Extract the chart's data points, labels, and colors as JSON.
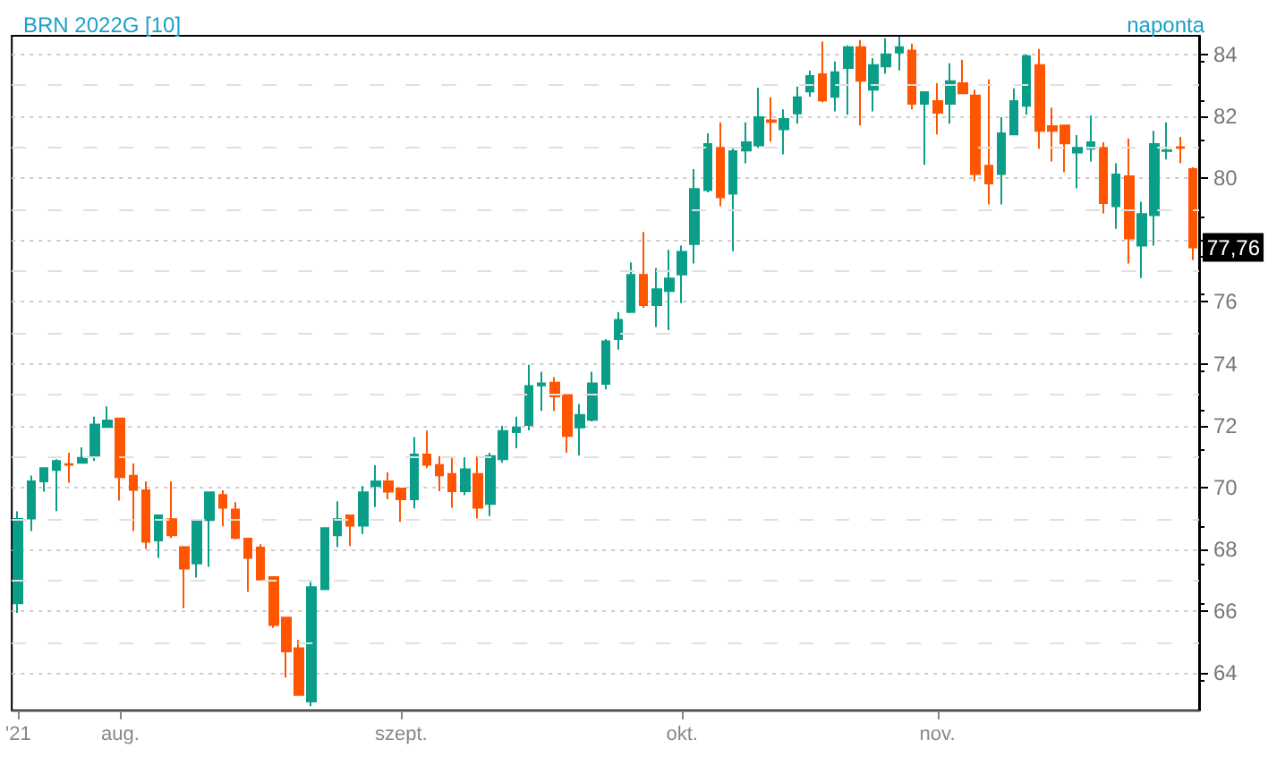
{
  "chart_data": {
    "type": "candlestick",
    "title": "BRN 2022G [10]",
    "subtitle": "naponta",
    "categories": [
      "'21",
      null,
      null,
      null,
      null,
      null,
      null,
      null,
      "aug.",
      null,
      null,
      null,
      null,
      null,
      null,
      null,
      null,
      null,
      null,
      null,
      null,
      null,
      null,
      null,
      null,
      null,
      null,
      null,
      null,
      null,
      "szept.",
      null,
      null,
      null,
      null,
      null,
      null,
      null,
      null,
      null,
      null,
      null,
      null,
      null,
      null,
      null,
      null,
      null,
      null,
      null,
      null,
      null,
      "okt.",
      null,
      null,
      null,
      null,
      null,
      null,
      null,
      null,
      null,
      null,
      null,
      null,
      null,
      null,
      null,
      null,
      null,
      null,
      null,
      "nov.",
      null,
      null,
      null,
      null,
      null,
      null,
      null,
      null,
      null,
      null,
      null,
      null,
      null,
      null,
      null,
      null,
      null,
      null,
      null,
      null
    ],
    "ohlc": [
      [
        66.26,
        69.23,
        65.95,
        68.99
      ],
      [
        69.0,
        70.39,
        68.6,
        70.2
      ],
      [
        70.2,
        70.63,
        69.87,
        70.63
      ],
      [
        70.57,
        70.92,
        69.24,
        70.86
      ],
      [
        70.76,
        71.13,
        70.16,
        70.74
      ],
      [
        70.8,
        71.3,
        70.8,
        70.96
      ],
      [
        71.03,
        72.29,
        70.86,
        72.04
      ],
      [
        71.96,
        72.62,
        71.94,
        72.17
      ],
      [
        72.23,
        72.23,
        69.58,
        70.34
      ],
      [
        70.38,
        70.78,
        68.6,
        69.93
      ],
      [
        69.91,
        70.2,
        68.02,
        68.25
      ],
      [
        68.29,
        69.1,
        67.73,
        69.1
      ],
      [
        68.98,
        70.2,
        68.37,
        68.46
      ],
      [
        68.08,
        68.11,
        66.1,
        67.38
      ],
      [
        67.55,
        68.93,
        67.09,
        68.93
      ],
      [
        68.95,
        69.85,
        67.44,
        69.85
      ],
      [
        69.76,
        69.91,
        68.75,
        69.35
      ],
      [
        69.29,
        69.53,
        68.33,
        68.37
      ],
      [
        68.35,
        68.35,
        66.63,
        67.73
      ],
      [
        68.06,
        68.17,
        67.03,
        67.03
      ],
      [
        67.11,
        67.11,
        65.47,
        65.56
      ],
      [
        65.8,
        65.8,
        63.86,
        64.71
      ],
      [
        64.81,
        65.08,
        63.3,
        63.3
      ],
      [
        63.09,
        66.95,
        62.94,
        66.78
      ],
      [
        66.72,
        68.69,
        66.72,
        68.69
      ],
      [
        68.46,
        69.56,
        68.08,
        68.98
      ],
      [
        69.1,
        69.1,
        68.11,
        68.77
      ],
      [
        68.77,
        70.05,
        68.5,
        69.85
      ],
      [
        70.05,
        70.72,
        69.37,
        70.2
      ],
      [
        70.2,
        70.49,
        69.62,
        69.87
      ],
      [
        69.97,
        69.97,
        68.89,
        69.62
      ],
      [
        69.62,
        71.63,
        69.33,
        71.07
      ],
      [
        71.07,
        71.84,
        70.63,
        70.74
      ],
      [
        70.73,
        71.02,
        69.88,
        70.4
      ],
      [
        70.44,
        70.98,
        69.35,
        69.88
      ],
      [
        69.88,
        70.98,
        69.76,
        70.59
      ],
      [
        70.44,
        71.02,
        69.0,
        69.35
      ],
      [
        69.47,
        71.13,
        69.08,
        71.02
      ],
      [
        70.92,
        72.0,
        70.8,
        71.83
      ],
      [
        71.79,
        72.29,
        71.27,
        71.94
      ],
      [
        72.02,
        73.97,
        71.85,
        73.28
      ],
      [
        73.3,
        73.74,
        72.48,
        73.37
      ],
      [
        73.39,
        73.57,
        72.48,
        72.95
      ],
      [
        72.99,
        72.99,
        71.13,
        71.67
      ],
      [
        71.94,
        72.7,
        71.04,
        72.35
      ],
      [
        72.19,
        73.74,
        72.14,
        73.37
      ],
      [
        73.35,
        74.8,
        73.18,
        74.73
      ],
      [
        74.8,
        75.67,
        74.46,
        75.42
      ],
      [
        75.67,
        77.28,
        75.67,
        76.87
      ],
      [
        76.87,
        78.26,
        75.81,
        75.9
      ],
      [
        75.9,
        77.1,
        75.19,
        76.41
      ],
      [
        76.35,
        77.68,
        75.09,
        76.76
      ],
      [
        76.89,
        77.82,
        75.96,
        77.62
      ],
      [
        77.87,
        80.29,
        77.24,
        79.65
      ],
      [
        79.61,
        81.45,
        79.54,
        81.1
      ],
      [
        80.98,
        81.8,
        79.09,
        79.38
      ],
      [
        79.5,
        80.98,
        77.64,
        80.87
      ],
      [
        80.89,
        81.8,
        80.48,
        81.16
      ],
      [
        81.06,
        82.92,
        80.98,
        81.97
      ],
      [
        81.87,
        82.61,
        81.18,
        81.82
      ],
      [
        81.58,
        82.22,
        80.77,
        81.91
      ],
      [
        82.09,
        82.96,
        81.76,
        82.61
      ],
      [
        82.8,
        83.48,
        82.63,
        83.3
      ],
      [
        83.36,
        84.41,
        82.45,
        82.51
      ],
      [
        82.63,
        83.77,
        82.16,
        83.42
      ],
      [
        83.56,
        84.29,
        82.05,
        84.23
      ],
      [
        84.23,
        84.46,
        81.7,
        83.15
      ],
      [
        82.86,
        83.88,
        82.16,
        83.65
      ],
      [
        83.61,
        84.52,
        83.38,
        84.0
      ],
      [
        84.06,
        84.58,
        83.48,
        84.23
      ],
      [
        84.12,
        84.35,
        82.22,
        82.4
      ],
      [
        82.4,
        82.78,
        80.43,
        82.78
      ],
      [
        82.49,
        83.07,
        81.41,
        82.11
      ],
      [
        82.4,
        83.71,
        81.76,
        83.13
      ],
      [
        83.07,
        83.83,
        82.74,
        82.74
      ],
      [
        82.67,
        82.86,
        79.9,
        80.13
      ],
      [
        80.4,
        83.19,
        79.15,
        79.83
      ],
      [
        80.13,
        81.97,
        79.15,
        81.45
      ],
      [
        81.41,
        82.9,
        81.41,
        82.49
      ],
      [
        82.34,
        84.0,
        82.05,
        83.94
      ],
      [
        83.65,
        84.17,
        80.95,
        81.53
      ],
      [
        81.68,
        82.28,
        80.54,
        81.53
      ],
      [
        81.7,
        81.7,
        80.19,
        81.12
      ],
      [
        80.83,
        81.39,
        79.67,
        80.98
      ],
      [
        80.95,
        82.03,
        80.54,
        81.16
      ],
      [
        80.98,
        81.16,
        78.86,
        79.19
      ],
      [
        79.09,
        80.48,
        78.36,
        80.12
      ],
      [
        80.06,
        81.28,
        77.24,
        78.05
      ],
      [
        77.82,
        79.24,
        76.77,
        78.84
      ],
      [
        78.8,
        81.53,
        77.82,
        81.1
      ],
      [
        80.88,
        81.8,
        80.6,
        80.9
      ],
      [
        81.0,
        81.33,
        80.48,
        80.98
      ],
      [
        80.29,
        80.35,
        77.35,
        77.76
      ]
    ],
    "colors": [
      "#0a9e88",
      "#0a9e88",
      "#0a9e88",
      "#0a9e88",
      "#ff5500",
      "#0a9e88",
      "#0a9e88",
      "#0a9e88",
      "#ff5500",
      "#ff5500",
      "#ff5500",
      "#0a9e88",
      "#ff5500",
      "#ff5500",
      "#0a9e88",
      "#0a9e88",
      "#ff5500",
      "#ff5500",
      "#ff5500",
      "#ff5500",
      "#ff5500",
      "#ff5500",
      "#ff5500",
      "#0a9e88",
      "#0a9e88",
      "#0a9e88",
      "#ff5500",
      "#0a9e88",
      "#0a9e88",
      "#ff5500",
      "#ff5500",
      "#0a9e88",
      "#ff5500",
      "#ff5500",
      "#ff5500",
      "#0a9e88",
      "#ff5500",
      "#0a9e88",
      "#0a9e88",
      "#0a9e88",
      "#0a9e88",
      "#0a9e88",
      "#ff5500",
      "#ff5500",
      "#0a9e88",
      "#0a9e88",
      "#0a9e88",
      "#0a9e88",
      "#0a9e88",
      "#ff5500",
      "#0a9e88",
      "#0a9e88",
      "#0a9e88",
      "#0a9e88",
      "#0a9e88",
      "#ff5500",
      "#0a9e88",
      "#0a9e88",
      "#0a9e88",
      "#ff5500",
      "#0a9e88",
      "#0a9e88",
      "#0a9e88",
      "#ff5500",
      "#0a9e88",
      "#0a9e88",
      "#ff5500",
      "#0a9e88",
      "#0a9e88",
      "#0a9e88",
      "#ff5500",
      "#0a9e88",
      "#ff5500",
      "#0a9e88",
      "#ff5500",
      "#ff5500",
      "#ff5500",
      "#0a9e88",
      "#0a9e88",
      "#0a9e88",
      "#ff5500",
      "#ff5500",
      "#ff5500",
      "#0a9e88",
      "#0a9e88",
      "#ff5500",
      "#0a9e88",
      "#ff5500",
      "#0a9e88",
      "#0a9e88",
      "#0a9e88",
      "#ff5500",
      "#ff5500"
    ],
    "ylim": [
      62.8,
      84.6
    ],
    "yticks": [
      64,
      66,
      68,
      70,
      72,
      74,
      76,
      {
        "value": 78,
        "label": null
      },
      80,
      82,
      84
    ],
    "grid": "y",
    "annotations": [
      {
        "text": "77,76",
        "y": 77.76
      }
    ]
  }
}
